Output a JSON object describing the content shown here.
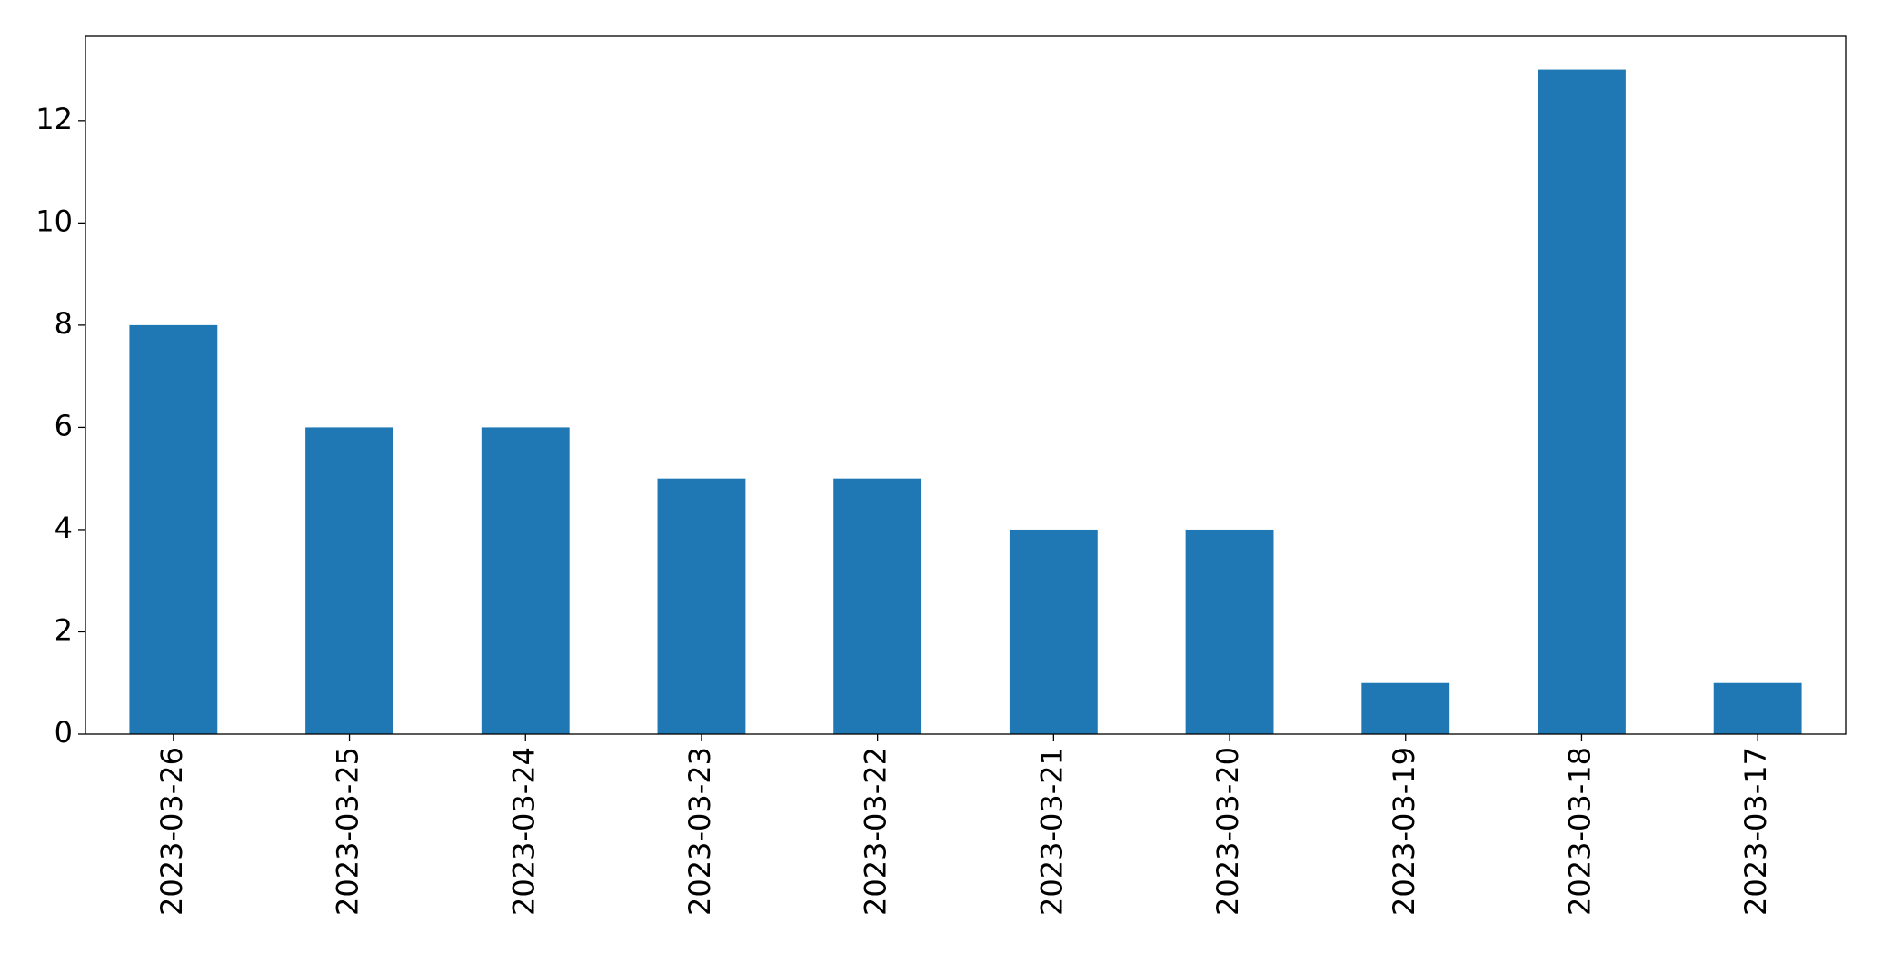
{
  "chart_data": {
    "type": "bar",
    "categories": [
      "2023-03-26",
      "2023-03-25",
      "2023-03-24",
      "2023-03-23",
      "2023-03-22",
      "2023-03-21",
      "2023-03-20",
      "2023-03-19",
      "2023-03-18",
      "2023-03-17"
    ],
    "values": [
      8,
      6,
      6,
      5,
      5,
      4,
      4,
      1,
      13,
      1
    ],
    "color": "#1f77b4",
    "ylim": [
      0,
      13.65
    ],
    "yticks": [
      0,
      2,
      4,
      6,
      8,
      10,
      12
    ],
    "grid": false
  }
}
